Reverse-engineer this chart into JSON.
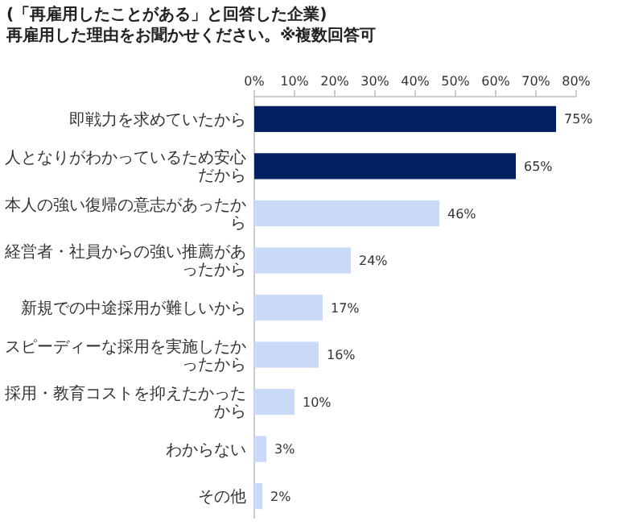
{
  "chart_data": {
    "type": "bar",
    "orientation": "horizontal",
    "title": "(「再雇用したことがある」と回答した企業)",
    "subtitle": "再雇用した理由をお聞かせください。※複数回答可",
    "categories": [
      "即戦力を求めていたから",
      "人となりがわかっているため安心だから",
      "本人の強い復帰の意志があったから",
      "経営者・社員からの強い推薦があったから",
      "新規での中途採用が難しいから",
      "スピーディーな採用を実施したかったから",
      "採用・教育コストを抑えたかったから",
      "わからない",
      "その他"
    ],
    "values": [
      75,
      65,
      46,
      24,
      17,
      16,
      10,
      3,
      2
    ],
    "value_labels": [
      "75%",
      "65%",
      "46%",
      "24%",
      "17%",
      "16%",
      "10%",
      "3%",
      "2%"
    ],
    "colors": [
      "#002060",
      "#002060",
      "#c9d9f8",
      "#c9d9f8",
      "#c9d9f8",
      "#c9d9f8",
      "#c9d9f8",
      "#c9d9f8",
      "#c9d9f8"
    ],
    "xlim": [
      0,
      80
    ],
    "xticks": [
      {
        "value": 0,
        "label": "0%"
      },
      {
        "value": 10,
        "label": "10%"
      },
      {
        "value": 20,
        "label": "20%"
      },
      {
        "value": 30,
        "label": "30%"
      },
      {
        "value": 40,
        "label": "40%"
      },
      {
        "value": 50,
        "label": "50%"
      },
      {
        "value": 60,
        "label": "60%"
      },
      {
        "value": 70,
        "label": "70%"
      },
      {
        "value": 80,
        "label": "80%"
      }
    ]
  }
}
